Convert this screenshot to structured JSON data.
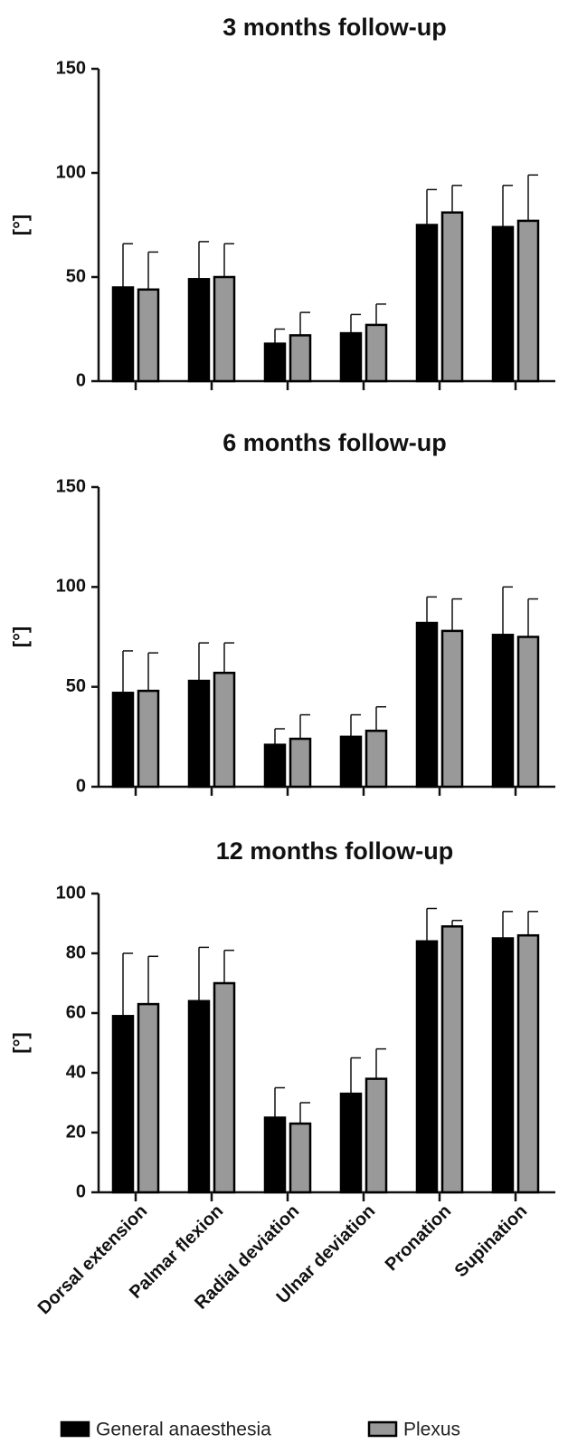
{
  "legend": [
    {
      "label": "General anaesthesia",
      "color": "#000000"
    },
    {
      "label": "Plexus",
      "color": "#999999"
    }
  ],
  "categories": [
    "Dorsal extension",
    "Palmar flexion",
    "Radial deviation",
    "Ulnar deviation",
    "Pronation",
    "Supination"
  ],
  "chart_data": [
    {
      "type": "bar",
      "title": "3 months follow-up",
      "ylabel": "[°]",
      "ylim": [
        0,
        150
      ],
      "yticks": [
        0,
        50,
        100,
        150
      ],
      "categories": [
        "Dorsal extension",
        "Palmar flexion",
        "Radial deviation",
        "Ulnar deviation",
        "Pronation",
        "Supination"
      ],
      "series": [
        {
          "name": "General anaesthesia",
          "values": [
            45,
            49,
            18,
            23,
            75,
            74
          ],
          "errors": [
            21,
            18,
            7,
            9,
            17,
            20
          ]
        },
        {
          "name": "Plexus",
          "values": [
            44,
            50,
            22,
            27,
            81,
            77
          ],
          "errors": [
            18,
            16,
            11,
            10,
            13,
            22
          ]
        }
      ]
    },
    {
      "type": "bar",
      "title": "6 months follow-up",
      "ylabel": "[°]",
      "ylim": [
        0,
        150
      ],
      "yticks": [
        0,
        50,
        100,
        150
      ],
      "categories": [
        "Dorsal extension",
        "Palmar flexion",
        "Radial deviation",
        "Ulnar deviation",
        "Pronation",
        "Supination"
      ],
      "series": [
        {
          "name": "General anaesthesia",
          "values": [
            47,
            53,
            21,
            25,
            82,
            76
          ],
          "errors": [
            21,
            19,
            8,
            11,
            13,
            24
          ]
        },
        {
          "name": "Plexus",
          "values": [
            48,
            57,
            24,
            28,
            78,
            75
          ],
          "errors": [
            19,
            15,
            12,
            12,
            16,
            19
          ]
        }
      ]
    },
    {
      "type": "bar",
      "title": "12 months follow-up",
      "ylabel": "[°]",
      "ylim": [
        0,
        100
      ],
      "yticks": [
        0,
        20,
        40,
        60,
        80,
        100
      ],
      "categories": [
        "Dorsal extension",
        "Palmar flexion",
        "Radial deviation",
        "Ulnar deviation",
        "Pronation",
        "Supination"
      ],
      "series": [
        {
          "name": "General anaesthesia",
          "values": [
            59,
            64,
            25,
            33,
            84,
            85
          ],
          "errors": [
            21,
            18,
            10,
            12,
            11,
            9
          ]
        },
        {
          "name": "Plexus",
          "values": [
            63,
            70,
            23,
            38,
            89,
            86
          ],
          "errors": [
            16,
            11,
            7,
            10,
            2,
            8
          ]
        }
      ]
    }
  ]
}
